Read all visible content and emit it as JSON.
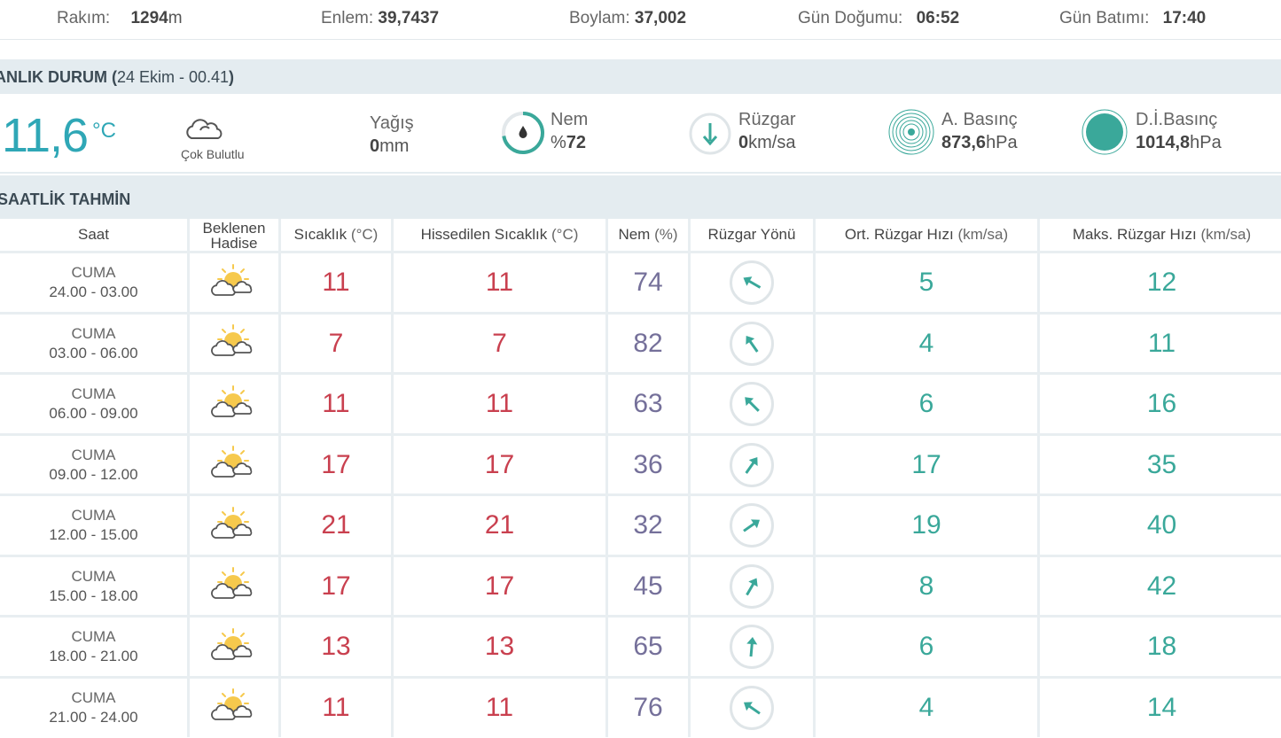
{
  "topbar": {
    "elevation_label": "Rakım:",
    "elevation_value": "1294",
    "elevation_unit": "m",
    "lat_label": "Enlem:",
    "lat_value": "39,7437",
    "lon_label": "Boylam:",
    "lon_value": "37,002",
    "sunrise_label": "Gün Doğumu:",
    "sunrise_value": "06:52",
    "sunset_label": "Gün Batımı:",
    "sunset_value": "17:40"
  },
  "current": {
    "title": "ANLIK DURUM (",
    "title_sub": "24 Ekim - 00.41",
    "title_close": ")",
    "temperature": "11,6",
    "temperature_unit": "°C",
    "condition": "Çok Bulutlu",
    "rain_label": "Yağış",
    "rain_value": "0",
    "rain_unit": "mm",
    "humidity_label": "Nem",
    "humidity_prefix": "%",
    "humidity_value": "72",
    "wind_label": "Rüzgar",
    "wind_value": "0",
    "wind_unit": "km/sa",
    "pressure_label": "A. Basınç",
    "pressure_value": "873,6",
    "pressure_unit": "hPa",
    "sea_pressure_label": "D.İ.Basınç",
    "sea_pressure_value": "1014,8",
    "sea_pressure_unit": "hPa"
  },
  "hourly": {
    "title": "SAATLİK TAHMİN",
    "headers": {
      "time": "Saat",
      "event_1": "Beklenen",
      "event_2": "Hadise",
      "temp": "Sıcaklık",
      "temp_unit": "(°C)",
      "feels": "Hissedilen Sıcaklık",
      "feels_unit": "(°C)",
      "humidity": "Nem",
      "humidity_unit": "(%)",
      "wind_dir": "Rüzgar Yönü",
      "avg_wind": "Ort. Rüzgar Hızı",
      "avg_wind_unit": "(km/sa)",
      "max_wind": "Maks. Rüzgar Hızı",
      "max_wind_unit": "(km/sa)"
    },
    "rows": [
      {
        "day": "CUMA",
        "range": "24.00 - 03.00",
        "icon": "partly-cloudy-sun-icon",
        "temp": "11",
        "feels": "11",
        "humidity": "74",
        "wind_deg": 300,
        "avg": "5",
        "max": "12"
      },
      {
        "day": "CUMA",
        "range": "03.00 - 06.00",
        "icon": "partly-cloudy-sun-icon",
        "temp": "7",
        "feels": "7",
        "humidity": "82",
        "wind_deg": 325,
        "avg": "4",
        "max": "11"
      },
      {
        "day": "CUMA",
        "range": "06.00 - 09.00",
        "icon": "partly-cloudy-sun-icon",
        "temp": "11",
        "feels": "11",
        "humidity": "63",
        "wind_deg": 315,
        "avg": "6",
        "max": "16"
      },
      {
        "day": "CUMA",
        "range": "09.00 - 12.00",
        "icon": "partly-cloudy-sun-icon",
        "temp": "17",
        "feels": "17",
        "humidity": "36",
        "wind_deg": 35,
        "avg": "17",
        "max": "35"
      },
      {
        "day": "CUMA",
        "range": "12.00 - 15.00",
        "icon": "partly-cloudy-sun-icon",
        "temp": "21",
        "feels": "21",
        "humidity": "32",
        "wind_deg": 55,
        "avg": "19",
        "max": "40"
      },
      {
        "day": "CUMA",
        "range": "15.00 - 18.00",
        "icon": "partly-cloudy-sun-icon",
        "temp": "17",
        "feels": "17",
        "humidity": "45",
        "wind_deg": 30,
        "avg": "8",
        "max": "42"
      },
      {
        "day": "CUMA",
        "range": "18.00 - 21.00",
        "icon": "partly-cloudy-sun-icon",
        "temp": "13",
        "feels": "13",
        "humidity": "65",
        "wind_deg": 5,
        "avg": "6",
        "max": "18"
      },
      {
        "day": "CUMA",
        "range": "21.00 - 24.00",
        "icon": "partly-cloudy-sun-icon",
        "temp": "11",
        "feels": "11",
        "humidity": "76",
        "wind_deg": 305,
        "avg": "4",
        "max": "14"
      }
    ]
  },
  "colors": {
    "accent": "#2fa7b6",
    "temp": "#c9404f",
    "humidity": "#75709a",
    "wind": "#3aa89a",
    "sun": "#f6c94d",
    "section_bg": "#e4ecf0"
  }
}
